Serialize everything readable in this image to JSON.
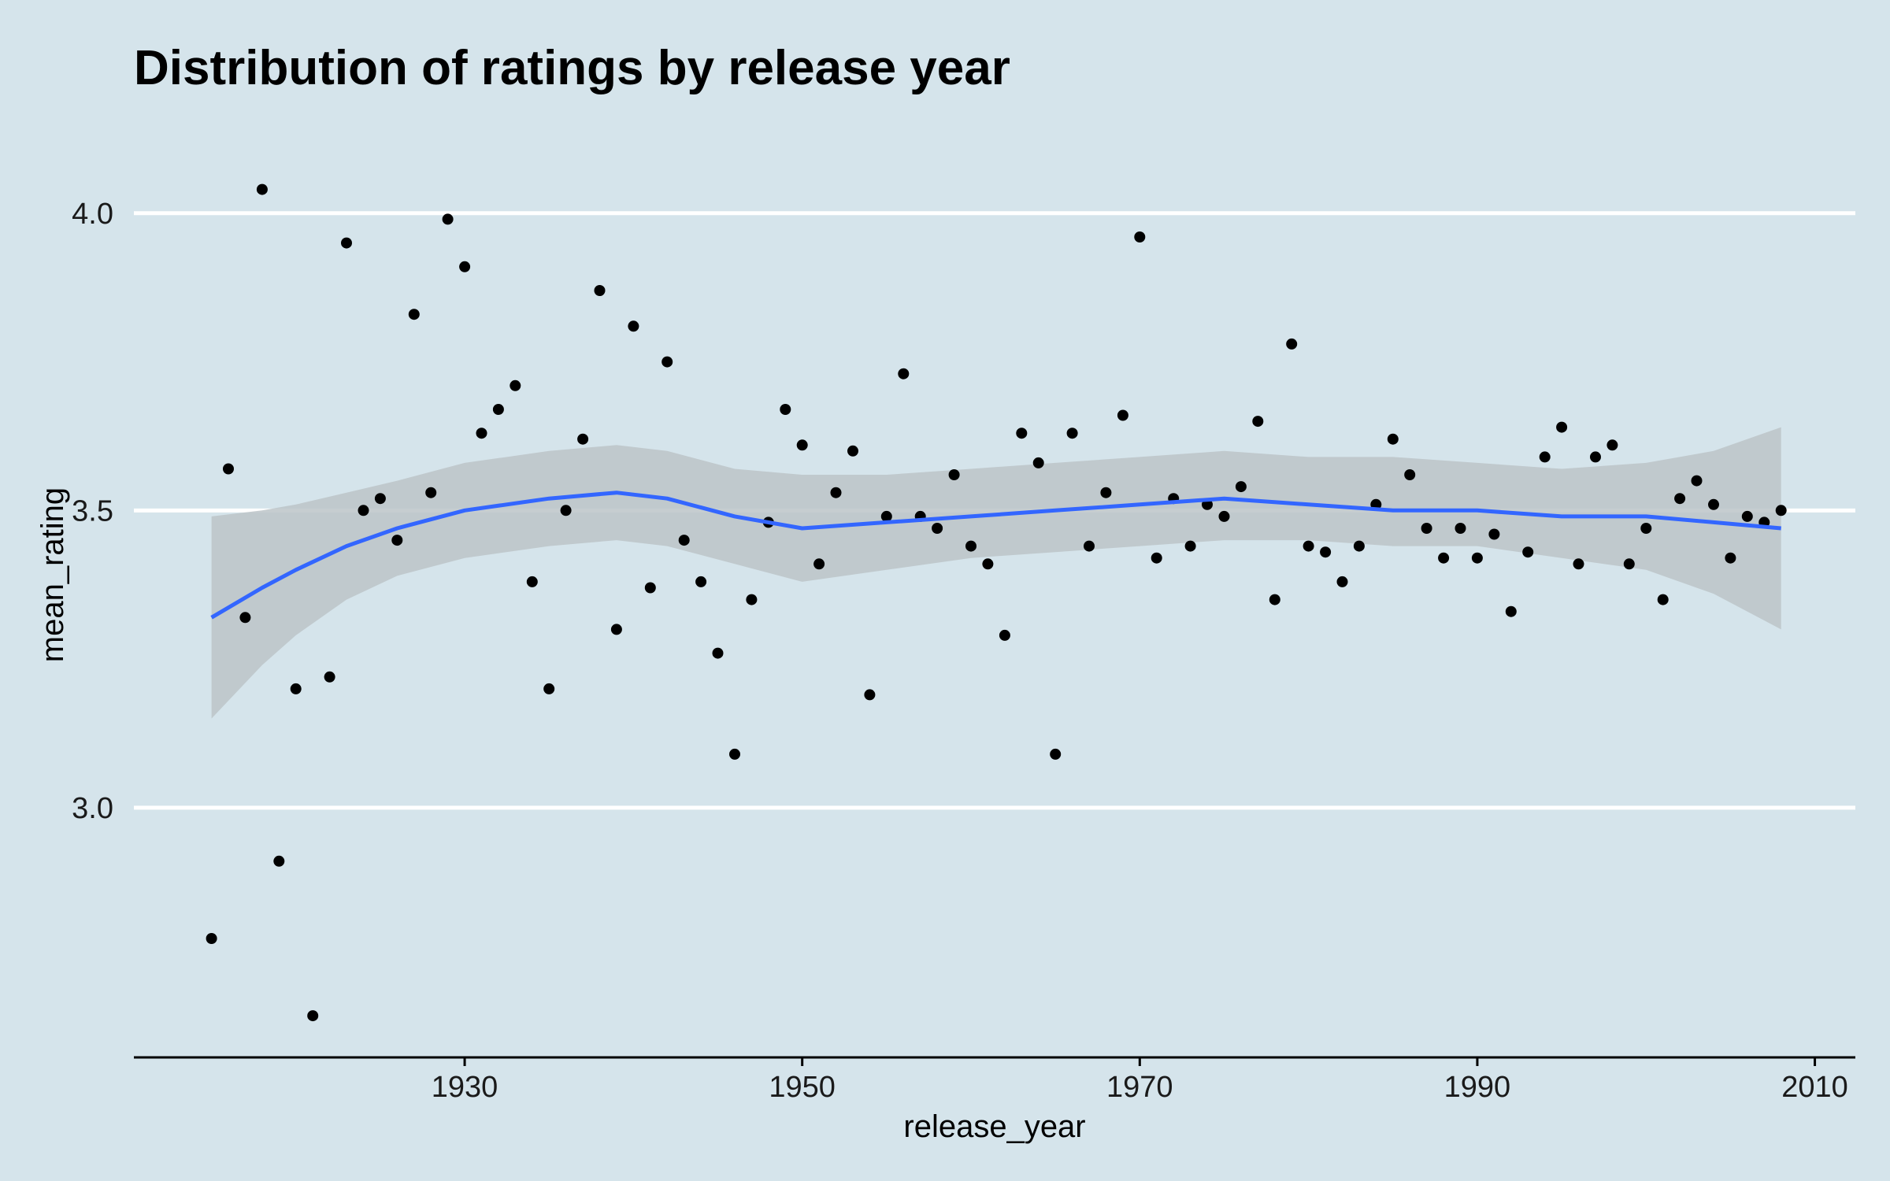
{
  "chart_data": {
    "type": "scatter",
    "title": "Distribution of ratings by release year",
    "xlabel": "release_year",
    "ylabel": "mean_rating",
    "xlim": [
      1910.4,
      2012.4
    ],
    "ylim": [
      2.58,
      4.16
    ],
    "x_ticks": [
      1930,
      1950,
      1970,
      1990,
      2010
    ],
    "x_tick_labels": [
      "1930",
      "1950",
      "1970",
      "1990",
      "2010"
    ],
    "y_ticks": [
      3.0,
      3.5,
      4.0
    ],
    "y_tick_labels": [
      "3.0",
      "3.5",
      "4.0"
    ],
    "grid": "horizontal major lines, white",
    "point_color": "#000000",
    "smooth_color": "#3366ff",
    "band_color": "#bcc4c8",
    "background_color": "#d5e4eb",
    "series": [
      {
        "type": "scatter",
        "x": [
          1915,
          1916,
          1917,
          1918,
          1919,
          1920,
          1921,
          1922,
          1923,
          1924,
          1925,
          1926,
          1927,
          1928,
          1929,
          1930,
          1931,
          1932,
          1933,
          1934,
          1935,
          1936,
          1937,
          1938,
          1939,
          1940,
          1941,
          1942,
          1943,
          1944,
          1945,
          1946,
          1947,
          1948,
          1949,
          1950,
          1951,
          1952,
          1953,
          1954,
          1955,
          1956,
          1957,
          1958,
          1959,
          1960,
          1961,
          1962,
          1963,
          1964,
          1965,
          1966,
          1967,
          1968,
          1969,
          1970,
          1971,
          1972,
          1973,
          1974,
          1975,
          1976,
          1977,
          1978,
          1979,
          1980,
          1981,
          1982,
          1983,
          1984,
          1985,
          1986,
          1987,
          1988,
          1989,
          1990,
          1991,
          1992,
          1993,
          1994,
          1995,
          1996,
          1997,
          1998,
          1999,
          2000,
          2001,
          2002,
          2003,
          2004,
          2005,
          2006,
          2007,
          2008
        ],
        "y": [
          2.78,
          3.57,
          3.32,
          4.04,
          2.91,
          3.2,
          2.65,
          3.22,
          3.95,
          3.5,
          3.52,
          3.45,
          3.83,
          3.53,
          3.99,
          3.91,
          3.63,
          3.67,
          3.71,
          3.38,
          3.2,
          3.5,
          3.62,
          3.87,
          3.3,
          3.81,
          3.37,
          3.75,
          3.45,
          3.38,
          3.26,
          3.09,
          3.35,
          3.48,
          3.67,
          3.61,
          3.41,
          3.53,
          3.6,
          3.19,
          3.49,
          3.73,
          3.49,
          3.47,
          3.56,
          3.44,
          3.41,
          3.29,
          3.63,
          3.58,
          3.09,
          3.63,
          3.44,
          3.53,
          3.66,
          3.96,
          3.42,
          3.52,
          3.44,
          3.51,
          3.49,
          3.54,
          3.65,
          3.35,
          3.78,
          3.44,
          3.43,
          3.38,
          3.44,
          3.51,
          3.62,
          3.56,
          3.47,
          3.42,
          3.47,
          3.42,
          3.46,
          3.33,
          3.43,
          3.59,
          3.64,
          3.41,
          3.59,
          3.61,
          3.41,
          3.47,
          3.35,
          3.52,
          3.55,
          3.51,
          3.42,
          3.49,
          3.48,
          3.5
        ]
      },
      {
        "type": "smooth",
        "x": [
          1915,
          1918,
          1920,
          1923,
          1926,
          1930,
          1935,
          1939,
          1942,
          1946,
          1950,
          1955,
          1960,
          1965,
          1970,
          1975,
          1980,
          1985,
          1990,
          1995,
          2000,
          2004,
          2008
        ],
        "y": [
          3.32,
          3.37,
          3.4,
          3.44,
          3.47,
          3.5,
          3.52,
          3.53,
          3.52,
          3.49,
          3.47,
          3.48,
          3.49,
          3.5,
          3.51,
          3.52,
          3.51,
          3.5,
          3.5,
          3.49,
          3.49,
          3.48,
          3.47
        ],
        "lower": [
          3.15,
          3.24,
          3.29,
          3.35,
          3.39,
          3.42,
          3.44,
          3.45,
          3.44,
          3.41,
          3.38,
          3.4,
          3.42,
          3.43,
          3.44,
          3.45,
          3.45,
          3.44,
          3.44,
          3.42,
          3.4,
          3.36,
          3.3
        ],
        "upper": [
          3.49,
          3.5,
          3.51,
          3.53,
          3.55,
          3.58,
          3.6,
          3.61,
          3.6,
          3.57,
          3.56,
          3.56,
          3.57,
          3.58,
          3.59,
          3.6,
          3.59,
          3.59,
          3.58,
          3.57,
          3.58,
          3.6,
          3.64
        ]
      }
    ]
  }
}
